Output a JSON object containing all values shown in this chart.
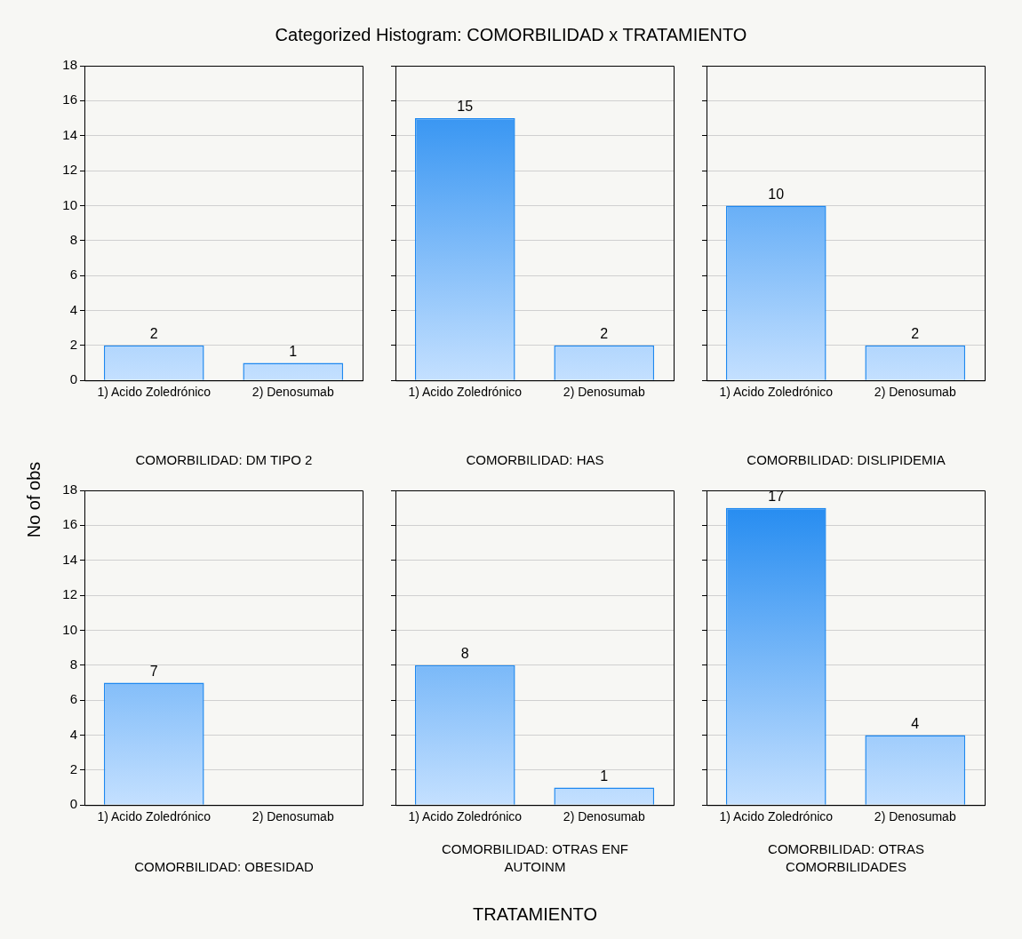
{
  "chart_data": [
    {
      "type": "bar",
      "title": "Categorized Histogram: COMORBILIDAD x TRATAMIENTO",
      "ylabel": "No of obs",
      "subtitle": "COMORBILIDAD: DM TIPO 2",
      "categories": [
        "1) Acido Zoledrónico",
        "2) Denosumab"
      ],
      "values": [
        2,
        1
      ],
      "color": "#1e88f0",
      "ylim": [
        0,
        18
      ],
      "yticks": [
        0,
        2,
        4,
        6,
        8,
        10,
        12,
        14,
        16,
        18
      ],
      "grid": "y",
      "data_labels": true
    },
    {
      "type": "bar",
      "subtitle": "COMORBILIDAD: HAS",
      "categories": [
        "1) Acido Zoledrónico",
        "2) Denosumab"
      ],
      "values": [
        15,
        2
      ],
      "color": "#1e88f0",
      "ylim": [
        0,
        18
      ],
      "yticks": [
        0,
        2,
        4,
        6,
        8,
        10,
        12,
        14,
        16,
        18
      ],
      "grid": "y",
      "data_labels": true,
      "tick_labels": "x"
    },
    {
      "type": "bar",
      "subtitle": "COMORBILIDAD: DISLIPIDEMIA",
      "categories": [
        "1) Acido Zoledrónico",
        "2) Denosumab"
      ],
      "values": [
        10,
        2
      ],
      "color": "#1e88f0",
      "ylim": [
        0,
        18
      ],
      "yticks": [
        0,
        2,
        4,
        6,
        8,
        10,
        12,
        14,
        16,
        18
      ],
      "grid": "y",
      "data_labels": true,
      "tick_labels": "x"
    },
    {
      "type": "bar",
      "subtitle": "COMORBILIDAD: OBESIDAD",
      "categories": [
        "1) Acido Zoledrónico",
        "2) Denosumab"
      ],
      "values": [
        7,
        0
      ],
      "color": "#1e88f0",
      "ylim": [
        0,
        18
      ],
      "yticks": [
        0,
        2,
        4,
        6,
        8,
        10,
        12,
        14,
        16,
        18
      ],
      "grid": "y",
      "value_labels": [
        "7",
        null
      ]
    },
    {
      "type": "bar",
      "subtitle": "COMORBILIDAD: OTRAS ENF AUTOINM",
      "xlabel": "TRATAMIENTO",
      "categories": [
        "1) Acido Zoledrónico",
        "2) Denosumab"
      ],
      "values": [
        8,
        1
      ],
      "color": "#1e88f0",
      "ylim": [
        0,
        18
      ],
      "yticks": [
        0,
        2,
        4,
        6,
        8,
        10,
        12,
        14,
        16,
        18
      ],
      "grid": "y",
      "data_labels": true,
      "tick_labels": "x"
    },
    {
      "type": "bar",
      "subtitle": "COMORBILIDAD: OTRAS COMORBILIDADES",
      "categories": [
        "1) Acido Zoledrónico",
        "2) Denosumab"
      ],
      "values": [
        17,
        4
      ],
      "color": "#1e88f0",
      "ylim": [
        0,
        18
      ],
      "yticks": [
        0,
        2,
        4,
        6,
        8,
        10,
        12,
        14,
        16,
        18
      ],
      "grid": "y",
      "data_labels": true,
      "tick_labels": "x"
    }
  ]
}
